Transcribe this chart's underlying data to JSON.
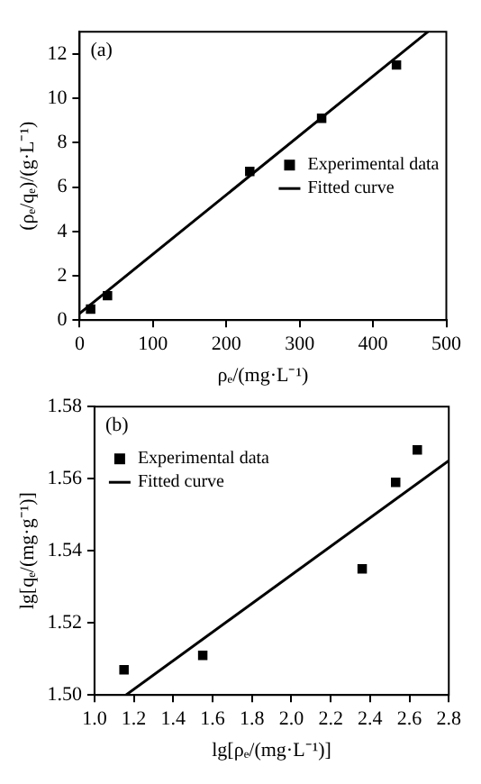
{
  "chart_data": [
    {
      "type": "scatter",
      "annotations": [
        "(a)"
      ],
      "xlabel": "ρₑ/(mg·L⁻¹)",
      "ylabel": "(ρₑ/qₑ)/(g·L⁻¹)",
      "xlim": [
        0,
        500
      ],
      "ylim": [
        0,
        13
      ],
      "xticks": [
        0,
        100,
        200,
        300,
        400,
        500
      ],
      "yticks": [
        0,
        2,
        4,
        6,
        8,
        10,
        12
      ],
      "legend": "right",
      "grid": false,
      "series": [
        {
          "name": "Experimental data",
          "type": "scatter",
          "marker": "square",
          "color": "#000000",
          "x": [
            15,
            38,
            232,
            330,
            432
          ],
          "values": [
            0.5,
            1.1,
            6.7,
            9.1,
            11.5
          ]
        },
        {
          "name": "Fitted curve",
          "type": "line",
          "color": "#000000",
          "x": [
            0,
            475
          ],
          "values": [
            0.3,
            13
          ]
        }
      ]
    },
    {
      "type": "scatter",
      "annotations": [
        "(b)"
      ],
      "xlabel": "lg[ρₑ/(mg·L⁻¹)]",
      "ylabel": "lg[qₑ/(mg·g⁻¹)]",
      "xlim": [
        1.0,
        2.8
      ],
      "ylim": [
        1.5,
        1.58
      ],
      "xticks": [
        {
          "value": 1.0,
          "label": "1.0"
        },
        1.2,
        1.4,
        1.6,
        1.8,
        {
          "value": 2.0,
          "label": "2.0"
        },
        2.2,
        2.4,
        2.6,
        2.8
      ],
      "yticks": [
        {
          "value": 1.5,
          "label": "1.50"
        },
        1.52,
        1.54,
        1.56,
        1.58
      ],
      "legend": "top left",
      "grid": false,
      "series": [
        {
          "name": "Experimental data",
          "type": "scatter",
          "marker": "square",
          "color": "#000000",
          "x": [
            1.15,
            1.55,
            2.36,
            2.53,
            2.64
          ],
          "values": [
            1.507,
            1.511,
            1.535,
            1.559,
            1.568
          ]
        },
        {
          "name": "Fitted curve",
          "type": "line",
          "color": "#000000",
          "x": [
            1.16,
            2.8
          ],
          "values": [
            1.5,
            1.565
          ]
        }
      ]
    }
  ]
}
